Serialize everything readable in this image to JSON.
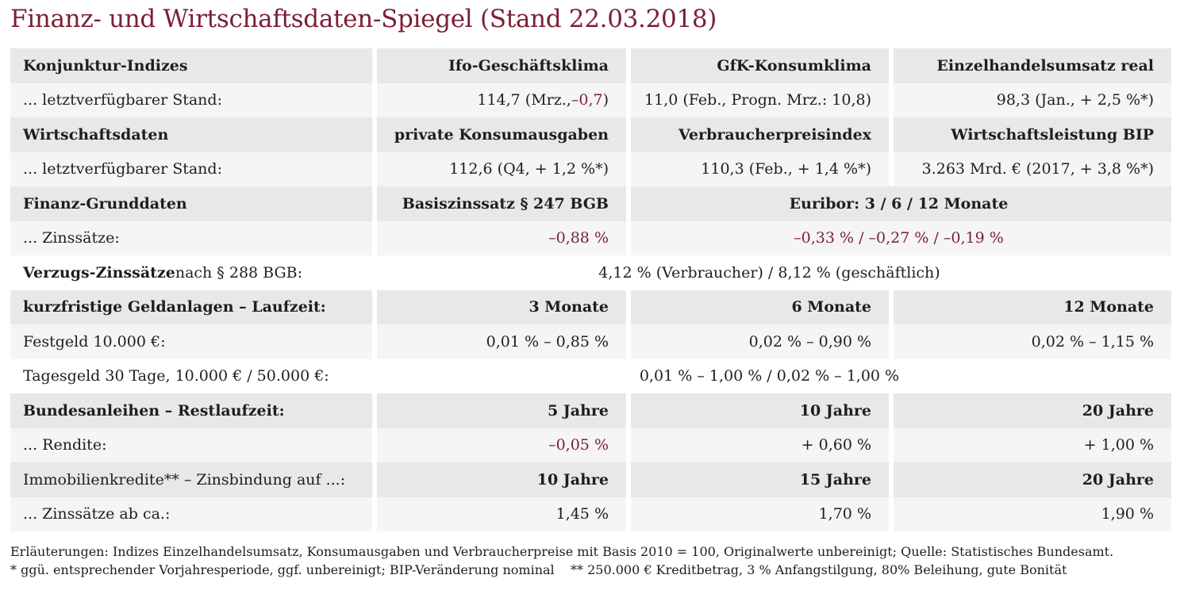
{
  "title": "Finanz- und Wirtschaftsdaten-Spiegel (Stand 22.03.2018)",
  "konjunktur": {
    "header": [
      "Konjunktur-Indizes",
      "Ifo-Geschäftsklima",
      "GfK-Konsumklima",
      "Einzelhandelsumsatz real"
    ],
    "label": "... letztverfügbarer Stand:",
    "ifo_value": "114,7 (Mrz., ",
    "ifo_change": "–0,7",
    "ifo_close": ")",
    "gfk": "11,0 (Feb., Progn. Mrz.: 10,8)",
    "einzelhandel": "98,3 (Jan., + 2,5 %*)"
  },
  "wirtschaft": {
    "header": [
      "Wirtschaftsdaten",
      "private Konsumausgaben",
      "Verbraucherpreisindex",
      "Wirtschaftsleistung BIP"
    ],
    "label": "... letztverfügbarer Stand:",
    "values": [
      "112,6 (Q4, + 1,2 %*)",
      "110,3 (Feb., + 1,4 %*)",
      "3.263 Mrd. € (2017, + 3,8 %*)"
    ]
  },
  "finanz": {
    "header": [
      "Finanz-Grunddaten",
      "Basiszinssatz § 247 BGB",
      "Euribor: 3 / 6 / 12 Monate"
    ],
    "label": "... Zinssätze:",
    "basiszins": "–0,88 %",
    "euribor": "–0,33 % / –0,27 % / –0,19 %"
  },
  "verzug": {
    "label_bold": "Verzugs-Zinssätze",
    "label_rest": " nach § 288 BGB:",
    "value": "4,12 % (Verbraucher) / 8,12 % (geschäftlich)"
  },
  "geldanlagen": {
    "header": [
      "kurzfristige Geldanlagen – Laufzeit:",
      "3 Monate",
      "6 Monate",
      "12 Monate"
    ],
    "festgeld_label": "Festgeld 10.000 €:",
    "festgeld": [
      "0,01 % – 0,85 %",
      "0,02 % – 0,90 %",
      "0,02 % – 1,15 %"
    ],
    "tagesgeld_label": "Tagesgeld 30 Tage, 10.000 € / 50.000 €:",
    "tagesgeld": "0,01 % – 1,00 % / 0,02 % – 1,00 %"
  },
  "bundesanleihen": {
    "header": [
      "Bundesanleihen – Restlaufzeit:",
      "5 Jahre",
      "10 Jahre",
      "20 Jahre"
    ],
    "label": "... Rendite:",
    "values": [
      "–0,05 %",
      "+ 0,60 %",
      "+ 1,00 %"
    ]
  },
  "immobilien": {
    "header": [
      "Immobilienkredite** – Zinsbindung auf ...:",
      "10 Jahre",
      "15 Jahre",
      "20 Jahre"
    ],
    "label": "... Zinssätze ab ca.:",
    "values": [
      "1,45 %",
      "1,70 %",
      "1,90 %"
    ]
  },
  "notes": {
    "line1": "Erläuterungen: Indizes Einzelhandelsumsatz, Konsumausgaben und Verbraucherpreise mit Basis 2010 = 100, Originalwerte unbereinigt; Quelle: Statistisches Bundesamt.",
    "line2": "* ggü. entsprechender Vorjahresperiode, ggf. unbereinigt; BIP-Veränderung nominal    ** 250.000 € Kreditbetrag, 3 % Anfangstilgung, 80% Beleihung, gute Bonität"
  },
  "colors": {
    "accent": "#7b1f35",
    "header_bg": "#e8e8e8",
    "row_bg": "#f5f5f5"
  }
}
